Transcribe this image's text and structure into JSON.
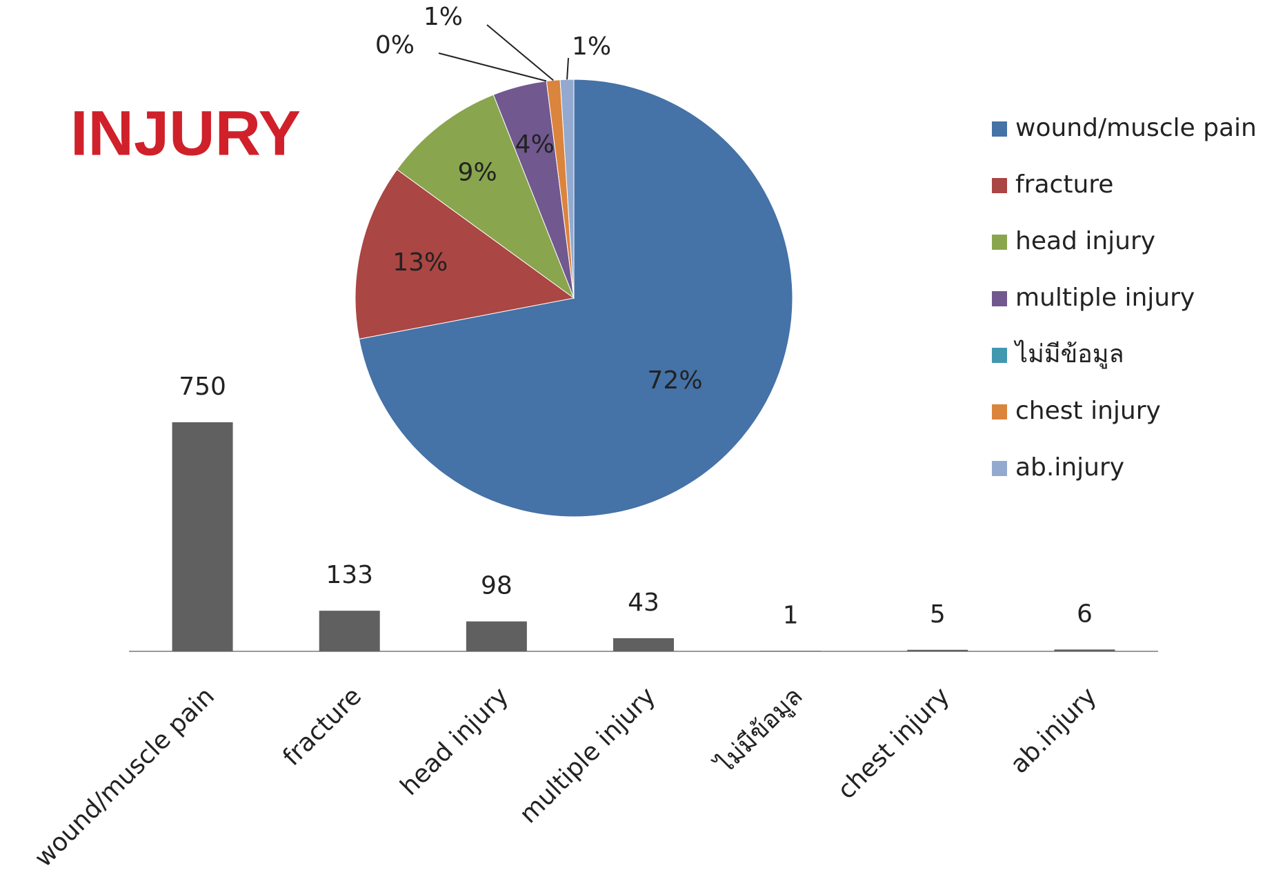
{
  "chart_data": [
    {
      "type": "bar",
      "categories": [
        "wound/muscle pain",
        "fracture",
        "head injury",
        "multiple injury",
        "ไม่มีข้อมูล",
        "chest injury",
        "ab.injury"
      ],
      "values": [
        750,
        133,
        98,
        43,
        1,
        5,
        6
      ],
      "color": "#606060"
    },
    {
      "type": "pie",
      "title": "INJURY",
      "title_color": "#d0202a",
      "categories": [
        "wound/muscle pain",
        "fracture",
        "head injury",
        "multiple injury",
        "ไม่มีข้อมูล",
        "chest injury",
        "ab.injury"
      ],
      "values": [
        72,
        13,
        9,
        4,
        0,
        1,
        1
      ],
      "value_labels": [
        "72%",
        "13%",
        "9%",
        "4%",
        "0%",
        "1%",
        "1%"
      ],
      "colors": [
        "#4572a7",
        "#aa4643",
        "#89a54e",
        "#71588f",
        "#4198af",
        "#db843d",
        "#93a9cf"
      ],
      "legend": "right"
    }
  ]
}
